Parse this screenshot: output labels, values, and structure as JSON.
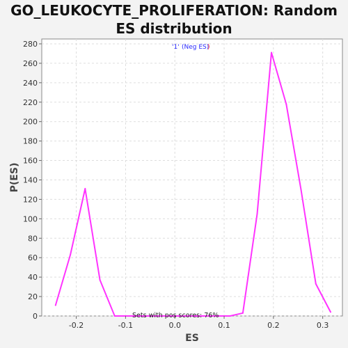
{
  "chart_data": {
    "type": "line",
    "title": "GO_LEUKOCYTE_PROLIFERATION: Random ES distribution",
    "xlabel": "ES",
    "ylabel": "P(ES)",
    "xlim": [
      -0.27,
      0.34
    ],
    "ylim": [
      0,
      285
    ],
    "xticks": [
      -0.2,
      -0.1,
      0.0,
      0.1,
      0.2,
      0.3
    ],
    "xtick_labels": [
      "-0.2",
      "-0.1",
      "0.0",
      "0.1",
      "0.2",
      "0.3"
    ],
    "yticks": [
      0,
      20,
      40,
      60,
      80,
      100,
      120,
      140,
      160,
      180,
      200,
      220,
      240,
      260,
      280
    ],
    "ytick_labels": [
      "0",
      "20",
      "40",
      "60",
      "80",
      "100",
      "120",
      "140",
      "160",
      "180",
      "200",
      "220",
      "240",
      "260",
      "280"
    ],
    "grid": true,
    "series": [
      {
        "color": "#ff33ff",
        "x": [
          -0.242,
          -0.212,
          -0.182,
          -0.152,
          -0.122,
          -0.092,
          -0.062,
          -0.032,
          -0.002,
          0.028,
          0.058,
          0.088,
          0.112,
          0.138,
          0.167,
          0.196,
          0.226,
          0.256,
          0.286,
          0.316
        ],
        "y": [
          11,
          63,
          131,
          37,
          0,
          0,
          0,
          0,
          0,
          0,
          0,
          0,
          0,
          3,
          105,
          271,
          218,
          130,
          33,
          4
        ]
      }
    ],
    "legend": {
      "placement": "top-center",
      "label_1": "'1'",
      "label_neg": "(Neg ES)",
      "label_close": ")"
    },
    "annotation": "Sets with pos scores: 76%",
    "colors": {
      "line": "#ff33ff",
      "legend_blue": "#2a2aff",
      "legend_red": "#ff2222",
      "grid": "#dddddd",
      "plot_bg": "#ffffff"
    }
  }
}
